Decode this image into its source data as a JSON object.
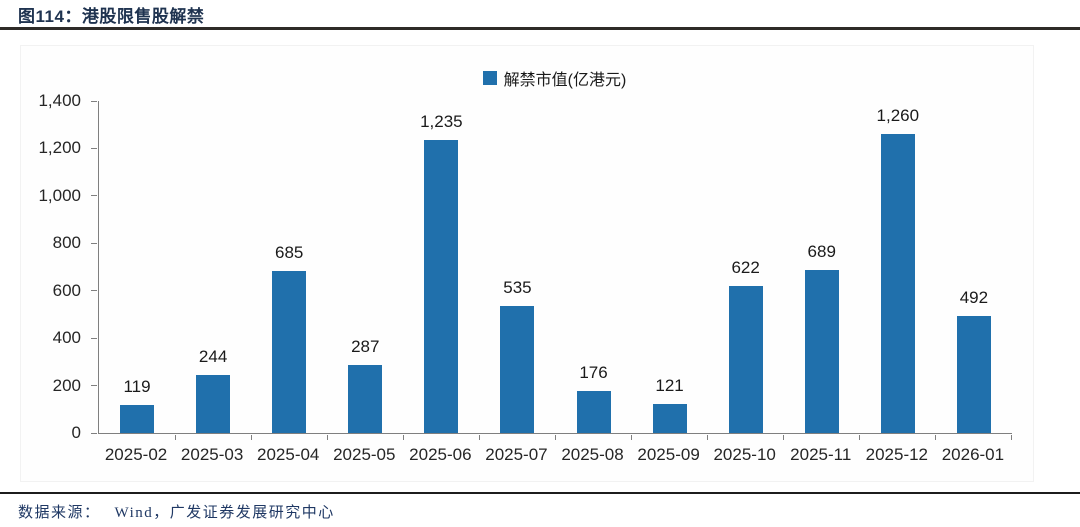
{
  "header": {
    "title": "图114：港股限售股解禁"
  },
  "chart_data": {
    "type": "bar",
    "title": "港股限售股解禁",
    "legend": [
      {
        "label": "解禁市值(亿港元)",
        "color": "#2070ac"
      }
    ],
    "categories": [
      "2025-02",
      "2025-03",
      "2025-04",
      "2025-05",
      "2025-06",
      "2025-07",
      "2025-08",
      "2025-09",
      "2025-10",
      "2025-11",
      "2025-12",
      "2026-01"
    ],
    "values": [
      119,
      244,
      685,
      287,
      1235,
      535,
      176,
      121,
      622,
      689,
      1260,
      492
    ],
    "value_labels": [
      "119",
      "244",
      "685",
      "287",
      "1,235",
      "535",
      "176",
      "121",
      "622",
      "689",
      "1,260",
      "492"
    ],
    "xlabel": "",
    "ylabel": "",
    "ylim": [
      0,
      1400
    ],
    "ytick_step": 200,
    "yticks": [
      0,
      200,
      400,
      600,
      800,
      1000,
      1200,
      1400
    ],
    "grid": false,
    "legend_position": "top-center",
    "bar_color": "#2070ac",
    "axis_color": "#7f7f7f"
  },
  "footer": {
    "source_label": "数据来源：",
    "source_text": "Wind，广发证券发展研究中心"
  }
}
